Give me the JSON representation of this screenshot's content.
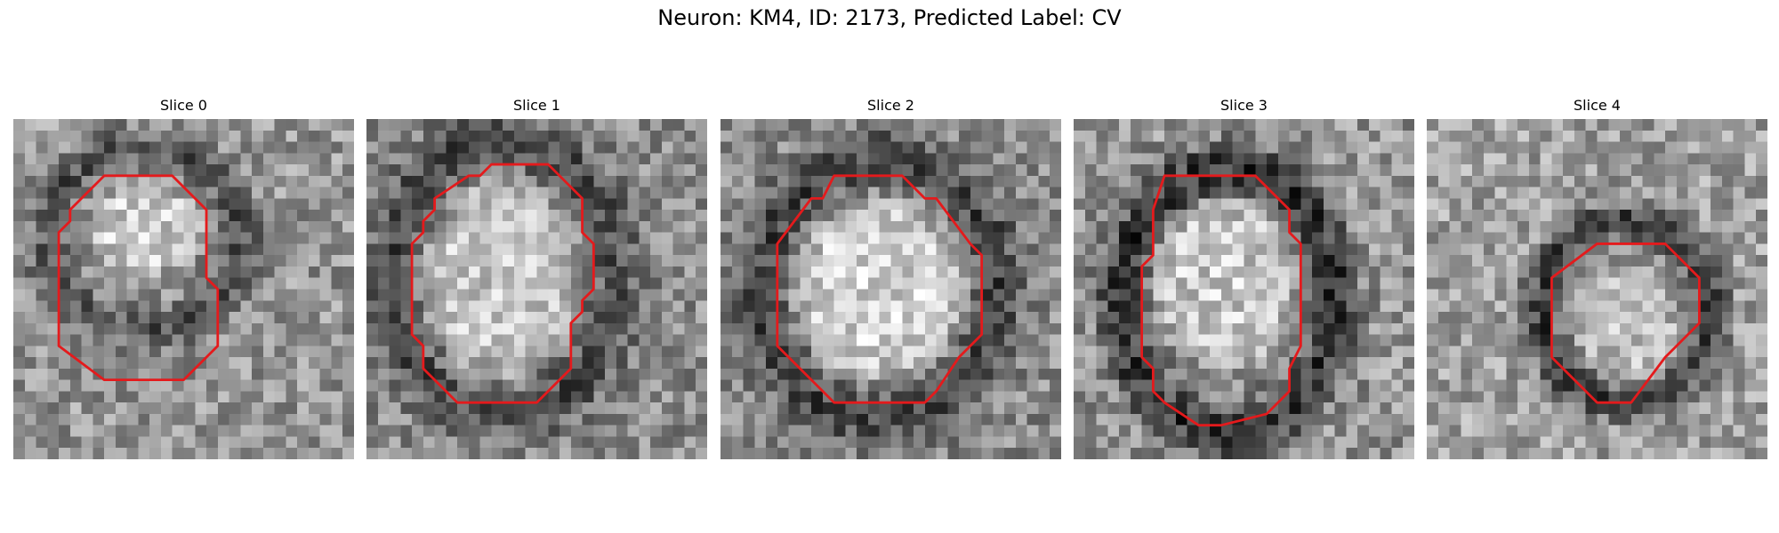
{
  "title": "Neuron: KM4, ID: 2173, Predicted Label: CV",
  "contour_color": "#e41a1c",
  "panels": [
    {
      "label": "Slice 0",
      "contour": [
        [
          8,
          5
        ],
        [
          14,
          5
        ],
        [
          17,
          8
        ],
        [
          17,
          14
        ],
        [
          18,
          15
        ],
        [
          18,
          20
        ],
        [
          15,
          23
        ],
        [
          8,
          23
        ],
        [
          4,
          20
        ],
        [
          4,
          10
        ],
        [
          5,
          9
        ],
        [
          5,
          8
        ]
      ],
      "blob": {
        "cx": 11.5,
        "cy": 9.5,
        "rx": 5.5,
        "ry": 4.5
      },
      "ring": {
        "cx": 11.5,
        "cy": 10.5,
        "rx": 8.5,
        "ry": 8
      },
      "tones": {
        "bg": 150,
        "ring": 85,
        "blob": 205,
        "noise": 50
      }
    },
    {
      "label": "Slice 1",
      "contour": [
        [
          11,
          4
        ],
        [
          16,
          4
        ],
        [
          19,
          7
        ],
        [
          19,
          10
        ],
        [
          20,
          11
        ],
        [
          20,
          15
        ],
        [
          19,
          16
        ],
        [
          19,
          17
        ],
        [
          18,
          18
        ],
        [
          18,
          22
        ],
        [
          15,
          25
        ],
        [
          8,
          25
        ],
        [
          5,
          22
        ],
        [
          5,
          20
        ],
        [
          4,
          19
        ],
        [
          4,
          18
        ],
        [
          4,
          14
        ],
        [
          4,
          11
        ],
        [
          5,
          10
        ],
        [
          5,
          9
        ],
        [
          6,
          8
        ],
        [
          6,
          7
        ],
        [
          9,
          5
        ],
        [
          10,
          5
        ]
      ],
      "blob": {
        "cx": 12,
        "cy": 14,
        "rx": 7.5,
        "ry": 10
      },
      "ring": {
        "cx": 12,
        "cy": 14,
        "rx": 10,
        "ry": 12
      },
      "tones": {
        "bg": 140,
        "ring": 75,
        "blob": 200,
        "noise": 48
      }
    },
    {
      "label": "Slice 2",
      "contour": [
        [
          10,
          5
        ],
        [
          16,
          5
        ],
        [
          18,
          7
        ],
        [
          19,
          7
        ],
        [
          22,
          11
        ],
        [
          23,
          12
        ],
        [
          23,
          19
        ],
        [
          22,
          20
        ],
        [
          21,
          21
        ],
        [
          19,
          24
        ],
        [
          18,
          25
        ],
        [
          10,
          25
        ],
        [
          8,
          23
        ],
        [
          5,
          20
        ],
        [
          5,
          11
        ],
        [
          8,
          7
        ],
        [
          9,
          7
        ]
      ],
      "blob": {
        "cx": 14,
        "cy": 15,
        "rx": 8.5,
        "ry": 9
      },
      "ring": {
        "cx": 14,
        "cy": 15,
        "rx": 10.5,
        "ry": 11.5
      },
      "tones": {
        "bg": 140,
        "ring": 70,
        "blob": 210,
        "noise": 48
      }
    },
    {
      "label": "Slice 3",
      "contour": [
        [
          8,
          5
        ],
        [
          16,
          5
        ],
        [
          19,
          8
        ],
        [
          19,
          10
        ],
        [
          20,
          11
        ],
        [
          20,
          16
        ],
        [
          20,
          20
        ],
        [
          19,
          22
        ],
        [
          19,
          24
        ],
        [
          17,
          26
        ],
        [
          13,
          27
        ],
        [
          11,
          27
        ],
        [
          8,
          25
        ],
        [
          7,
          24
        ],
        [
          7,
          22
        ],
        [
          6,
          21
        ],
        [
          6,
          13
        ],
        [
          7,
          12
        ],
        [
          7,
          8
        ]
      ],
      "blob": {
        "cx": 13.5,
        "cy": 14.5,
        "rx": 7,
        "ry": 8.5
      },
      "ring": {
        "cx": 13.5,
        "cy": 16,
        "rx": 9.5,
        "ry": 11.5
      },
      "tones": {
        "bg": 150,
        "ring": 55,
        "blob": 200,
        "noise": 52
      }
    },
    {
      "label": "Slice 4",
      "contour": [
        [
          15,
          11
        ],
        [
          21,
          11
        ],
        [
          24,
          14
        ],
        [
          24,
          18
        ],
        [
          22,
          20
        ],
        [
          21,
          21
        ],
        [
          18,
          25
        ],
        [
          15,
          25
        ],
        [
          11,
          21
        ],
        [
          11,
          14
        ]
      ],
      "blob": {
        "cx": 17.5,
        "cy": 18,
        "rx": 5,
        "ry": 5.5
      },
      "ring": {
        "cx": 17.5,
        "cy": 17,
        "rx": 7.5,
        "ry": 8
      },
      "tones": {
        "bg": 160,
        "ring": 60,
        "blob": 190,
        "noise": 50
      }
    }
  ]
}
